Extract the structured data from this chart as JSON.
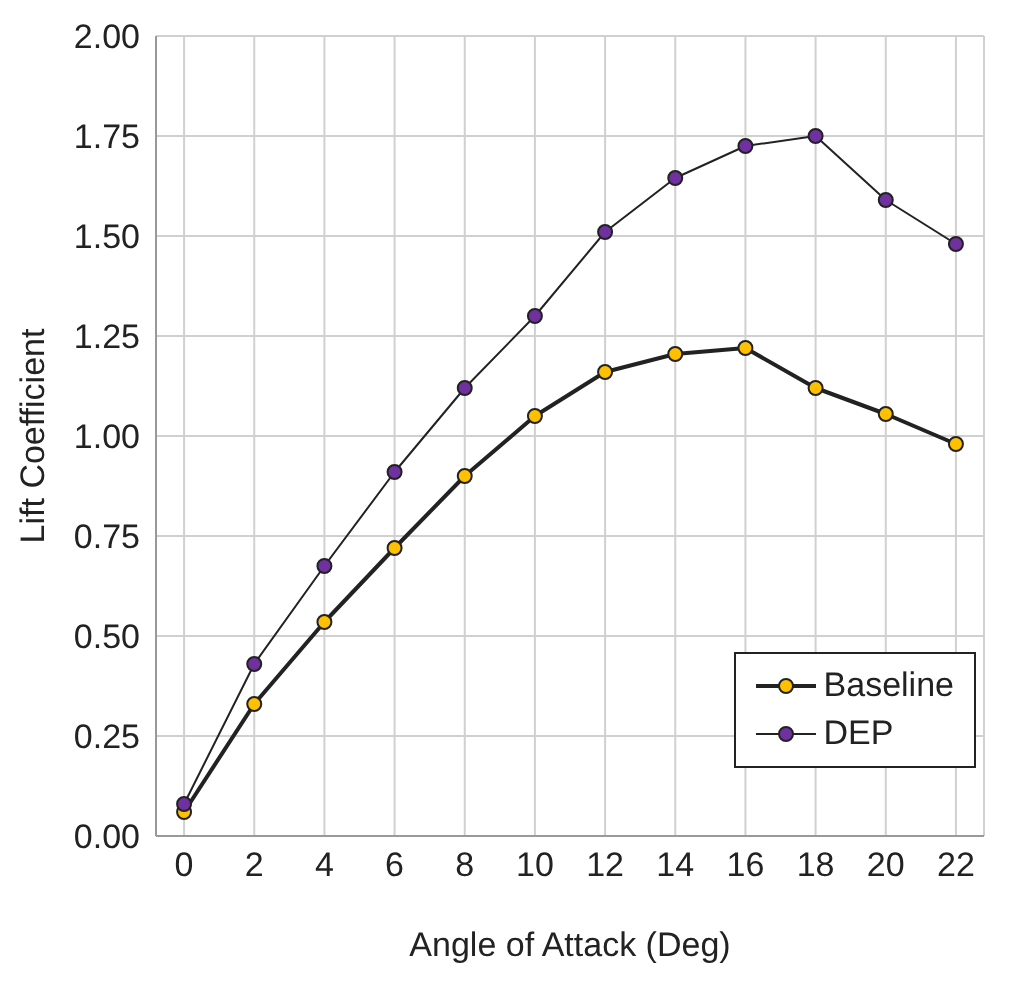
{
  "chart_data": {
    "type": "line",
    "xlabel": "Angle of Attack (Deg)",
    "ylabel": "Lift Coefficient",
    "x": [
      0,
      2,
      4,
      6,
      8,
      10,
      12,
      14,
      16,
      18,
      20,
      22
    ],
    "series": [
      {
        "name": "Baseline",
        "color": "#ffc000",
        "values": [
          0.06,
          0.33,
          0.535,
          0.72,
          0.9,
          1.05,
          1.16,
          1.205,
          1.22,
          1.12,
          1.055,
          0.98
        ]
      },
      {
        "name": "DEP",
        "color": "#7030a0",
        "values": [
          0.08,
          0.43,
          0.675,
          0.91,
          1.12,
          1.3,
          1.51,
          1.645,
          1.725,
          1.75,
          1.59,
          1.48
        ]
      }
    ],
    "xlim": [
      -0.8,
      22.8
    ],
    "xticks": [
      0,
      2,
      4,
      6,
      8,
      10,
      12,
      14,
      16,
      18,
      20,
      22
    ],
    "ylim": [
      0,
      2
    ],
    "yticks": [
      {
        "value": 0,
        "label": "0.00"
      },
      0.25,
      {
        "value": 0.5,
        "label": "0.50"
      },
      0.75,
      {
        "value": 1,
        "label": "1.00"
      },
      1.25,
      {
        "value": 1.5,
        "label": "1.50"
      },
      1.75,
      {
        "value": 2,
        "label": "2.00"
      }
    ],
    "grid": true,
    "legend": "bottom right",
    "marker": "circle",
    "line_style": "solid"
  }
}
